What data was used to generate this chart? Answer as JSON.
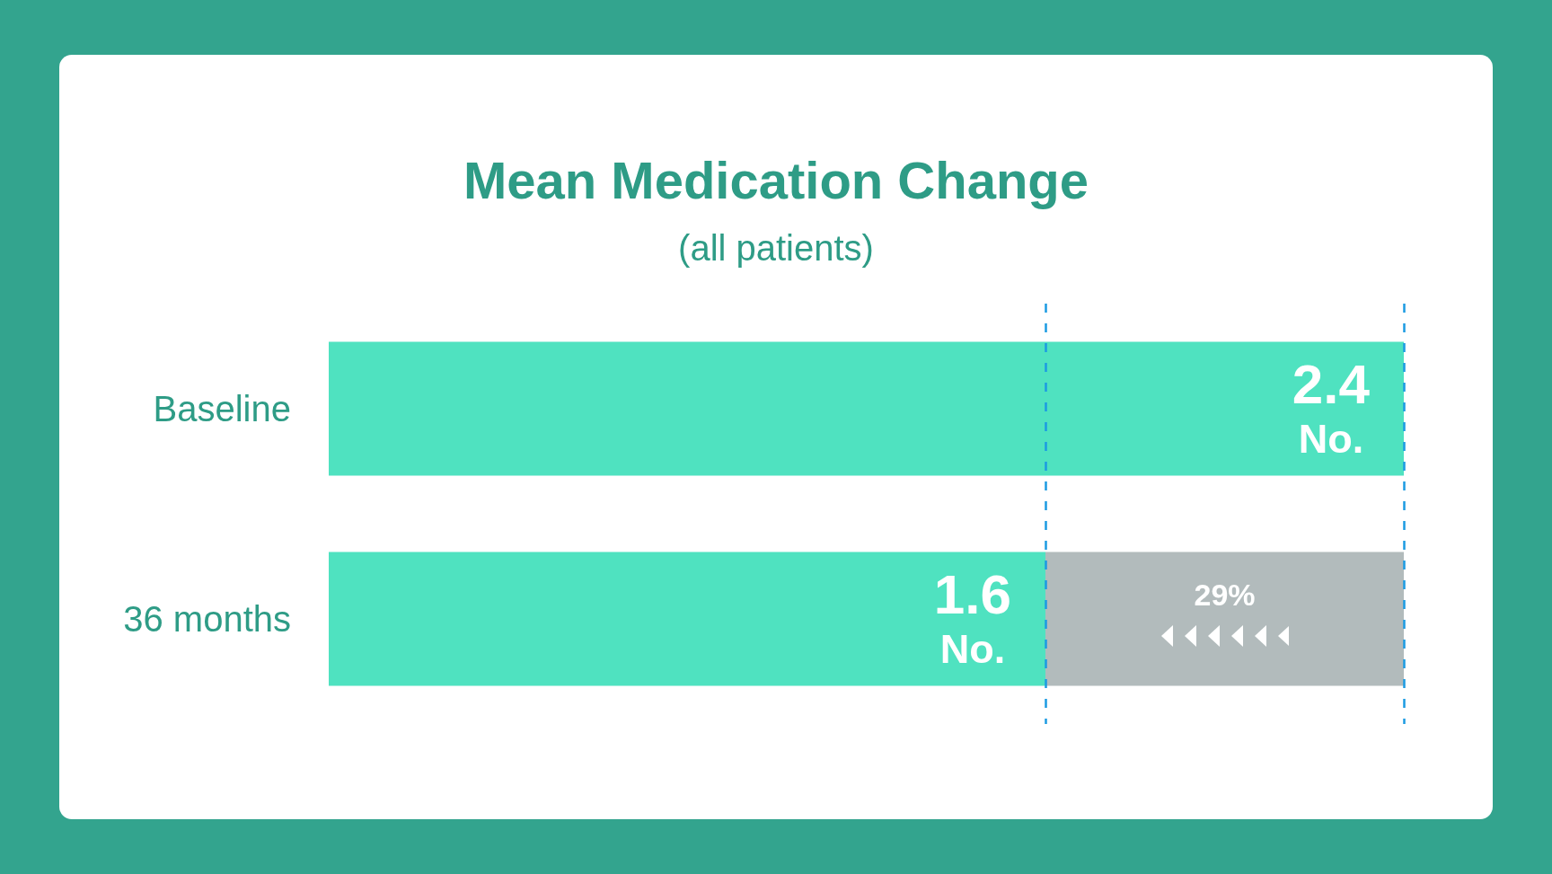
{
  "chart_data": {
    "type": "bar",
    "orientation": "horizontal",
    "stacked": true,
    "title": "Mean Medication Change",
    "subtitle": "(all patients)",
    "categories": [
      "Baseline",
      "36 months"
    ],
    "series": [
      {
        "color": "#4fe2c0",
        "values": [
          2.4,
          1.6
        ],
        "value_labels": [
          "2.4\nNo.",
          "1.6\nNo."
        ]
      },
      {
        "color": "#b2bbbc",
        "values": [
          null,
          0.8
        ]
      }
    ],
    "xlim": [
      0,
      2.4
    ],
    "ref_lines": [
      {
        "axis": "x",
        "value": 1.6,
        "color": "#1b9be2",
        "line_style": "dashed"
      },
      {
        "axis": "x",
        "value": 2.4,
        "color": "#1b9be2",
        "line_style": "dashed"
      }
    ],
    "annotations": [
      "29%"
    ],
    "tick_labels": "y"
  }
}
